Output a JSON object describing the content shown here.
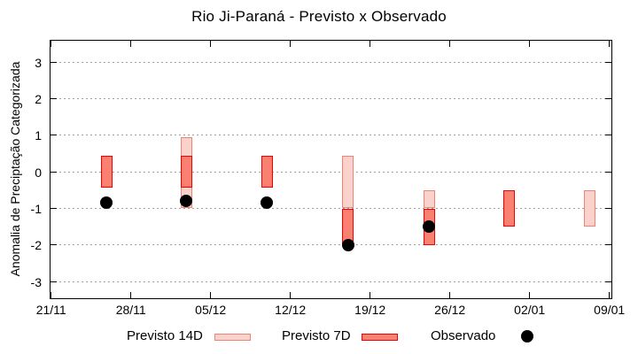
{
  "chart_data": {
    "type": "bar",
    "subtype": "range-bars-with-scatter",
    "title": "Rio Ji-Paraná - Previsto x Observado",
    "xlabel": "",
    "ylabel": "Anomalia de Preciptação Categorizada",
    "ylim": [
      -3.45,
      3.6
    ],
    "grid": "horizontal dotted gridlines at integer values",
    "legend_position": "below plot, horizontal",
    "yticks": [
      "3",
      "2",
      "1",
      "0",
      "-1",
      "-2",
      "-3"
    ],
    "ytick_values": [
      3,
      2,
      1,
      0,
      -1,
      -2,
      -3
    ],
    "x_axis": {
      "tick_labels": [
        "21/11",
        "28/11",
        "05/12",
        "12/12",
        "19/12",
        "26/12",
        "02/01",
        "09/01"
      ],
      "tick_days": [
        0,
        7,
        14,
        21,
        28,
        35,
        42,
        49
      ]
    },
    "series": [
      {
        "name": "Previsto 14D",
        "type": "range-bar",
        "fill": "#fbd2cb",
        "border": "#ee8374",
        "points": [
          {
            "date": "03/12",
            "day": 11.9,
            "low": -1.0,
            "high": 0.95
          },
          {
            "date": "17/12",
            "day": 26.1,
            "low": -1.0,
            "high": 0.43
          },
          {
            "date": "24/12",
            "day": 33.2,
            "low": -1.0,
            "high": -0.5
          },
          {
            "date": "07/01",
            "day": 47.3,
            "low": -1.5,
            "high": -0.5
          }
        ]
      },
      {
        "name": "Previsto 7D",
        "type": "range-bar",
        "fill": "#fa8072",
        "border": "#f20000",
        "points": [
          {
            "date": "26/11",
            "day": 4.9,
            "low": -0.43,
            "high": 0.43
          },
          {
            "date": "03/12",
            "day": 11.9,
            "low": -0.43,
            "high": 0.43
          },
          {
            "date": "10/12",
            "day": 19.0,
            "low": -0.43,
            "high": 0.43
          },
          {
            "date": "17/12",
            "day": 26.1,
            "low": -2.0,
            "high": -1.0
          },
          {
            "date": "24/12",
            "day": 33.2,
            "low": -2.0,
            "high": -1.0
          },
          {
            "date": "31/12",
            "day": 40.2,
            "low": -1.5,
            "high": -0.5
          }
        ]
      },
      {
        "name": "Observado",
        "type": "scatter",
        "fill": "#000000",
        "points": [
          {
            "date": "26/11",
            "day": 4.9,
            "value": -0.85
          },
          {
            "date": "03/12",
            "day": 11.9,
            "value": -0.8
          },
          {
            "date": "10/12",
            "day": 19.0,
            "value": -0.85
          },
          {
            "date": "17/12",
            "day": 26.1,
            "value": -2.0
          },
          {
            "date": "24/12",
            "day": 33.2,
            "value": -1.5
          }
        ]
      }
    ],
    "legend": [
      {
        "label": "Previsto 14D",
        "swatch": "bar",
        "fill": "#fbd2cb",
        "border": "#ee8374"
      },
      {
        "label": "Previsto 7D",
        "swatch": "bar",
        "fill": "#fa8072",
        "border": "#f20000"
      },
      {
        "label": "Observado",
        "swatch": "dot",
        "fill": "#000000"
      }
    ]
  },
  "colors": {
    "background": "#ffffff",
    "axis": "#000000",
    "grid": "#9e9e9e",
    "text": "#000000"
  }
}
